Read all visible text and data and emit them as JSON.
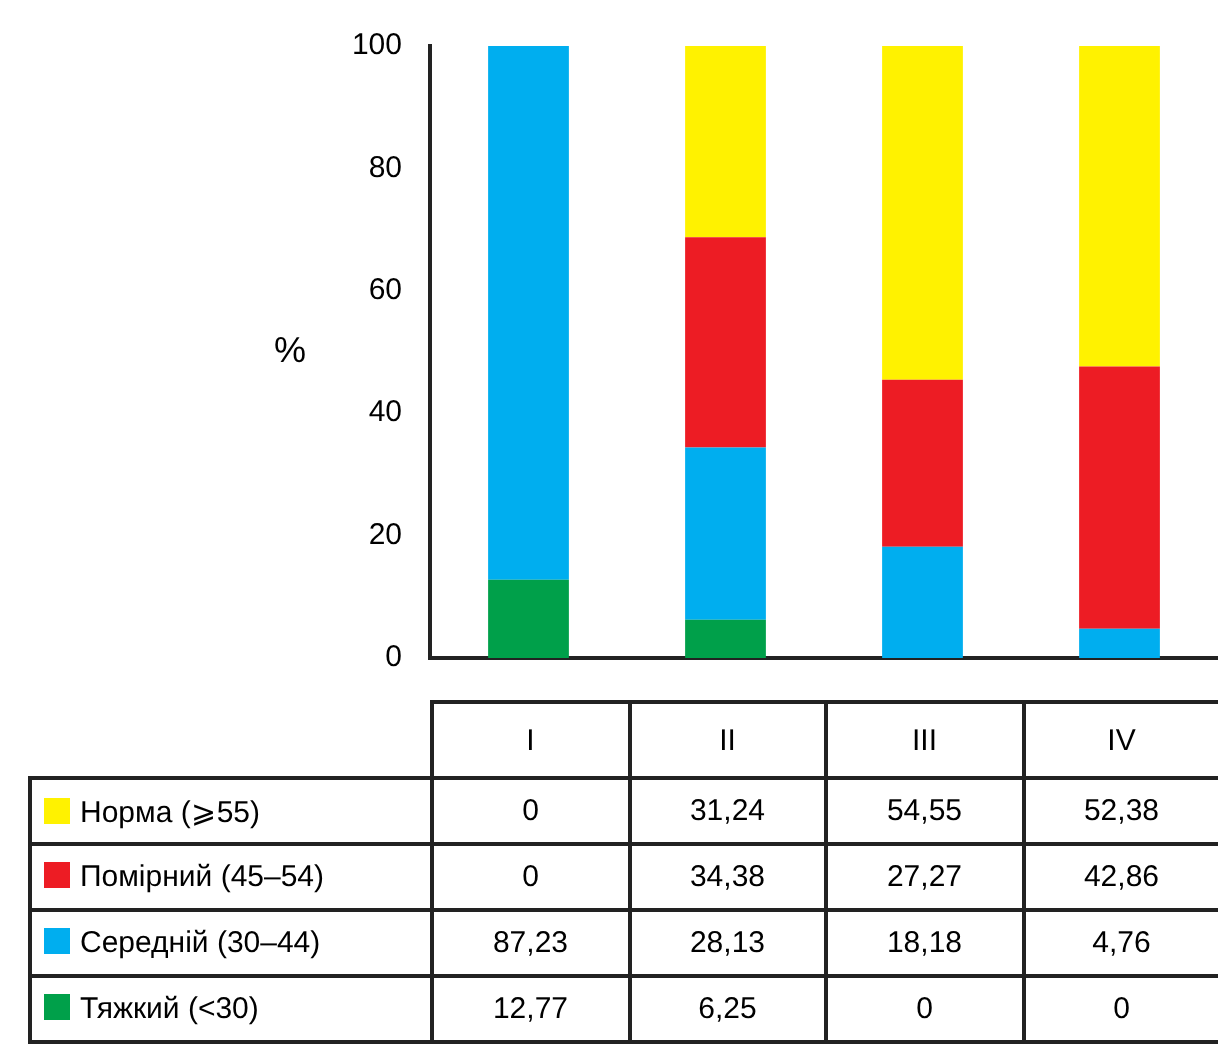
{
  "chart_data": {
    "type": "bar",
    "stacked": true,
    "ylabel": "%",
    "categories": [
      "I",
      "II",
      "III",
      "IV"
    ],
    "ylim": [
      0,
      100
    ],
    "yticks": [
      0,
      20,
      40,
      60,
      80,
      100
    ],
    "legend": "bottom",
    "series": [
      {
        "name": "Тяжкий (<30)",
        "color": "#00a04a",
        "values": [
          12.77,
          6.25,
          0,
          0
        ],
        "value_labels": [
          "12,77",
          "6,25",
          "0",
          "0"
        ]
      },
      {
        "name": "Середній (30–44)",
        "color": "#00aeef",
        "values": [
          87.23,
          28.13,
          18.18,
          4.76
        ],
        "value_labels": [
          "87,23",
          "28,13",
          "18,18",
          "4,76"
        ]
      },
      {
        "name": "Помірний (45–54)",
        "color": "#ed1c24",
        "values": [
          0,
          34.38,
          27.27,
          42.86
        ],
        "value_labels": [
          "0",
          "34,38",
          "27,27",
          "42,86"
        ]
      },
      {
        "name": "Норма (⩾55)",
        "color": "#fff200",
        "values": [
          0,
          31.24,
          54.55,
          52.38
        ],
        "value_labels": [
          "0",
          "31,24",
          "54,55",
          "52,38"
        ]
      }
    ]
  }
}
